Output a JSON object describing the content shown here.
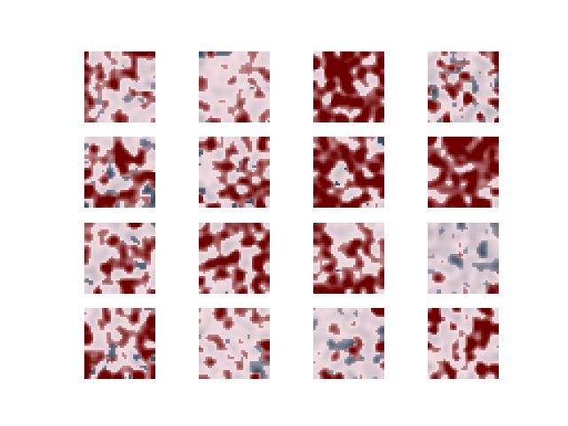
{
  "figure": {
    "grid": {
      "rows": 4,
      "cols": 4
    },
    "colormap": {
      "low": "#3a4a62",
      "mid": "#f3dde2",
      "high": "#6b0000"
    },
    "panels": [
      {
        "row": 0,
        "col": 0,
        "density": 0.52,
        "dark_level": 0.34,
        "seed": 11
      },
      {
        "row": 0,
        "col": 1,
        "density": 0.36,
        "dark_level": 0.26,
        "seed": 23
      },
      {
        "row": 0,
        "col": 2,
        "density": 0.74,
        "dark_level": 0.1,
        "seed": 37
      },
      {
        "row": 0,
        "col": 3,
        "density": 0.3,
        "dark_level": 0.3,
        "seed": 41
      },
      {
        "row": 1,
        "col": 0,
        "density": 0.46,
        "dark_level": 0.3,
        "seed": 53
      },
      {
        "row": 1,
        "col": 1,
        "density": 0.52,
        "dark_level": 0.22,
        "seed": 67
      },
      {
        "row": 1,
        "col": 2,
        "density": 0.62,
        "dark_level": 0.1,
        "seed": 71
      },
      {
        "row": 1,
        "col": 3,
        "density": 0.7,
        "dark_level": 0.12,
        "seed": 89
      },
      {
        "row": 2,
        "col": 0,
        "density": 0.48,
        "dark_level": 0.26,
        "seed": 97
      },
      {
        "row": 2,
        "col": 1,
        "density": 0.62,
        "dark_level": 0.12,
        "seed": 103
      },
      {
        "row": 2,
        "col": 2,
        "density": 0.56,
        "dark_level": 0.18,
        "seed": 113
      },
      {
        "row": 2,
        "col": 3,
        "density": 0.12,
        "dark_level": 0.36,
        "seed": 127
      },
      {
        "row": 3,
        "col": 0,
        "density": 0.48,
        "dark_level": 0.24,
        "seed": 131
      },
      {
        "row": 3,
        "col": 1,
        "density": 0.34,
        "dark_level": 0.32,
        "seed": 149
      },
      {
        "row": 3,
        "col": 2,
        "density": 0.3,
        "dark_level": 0.34,
        "seed": 157
      },
      {
        "row": 3,
        "col": 3,
        "density": 0.5,
        "dark_level": 0.16,
        "seed": 163
      }
    ]
  }
}
